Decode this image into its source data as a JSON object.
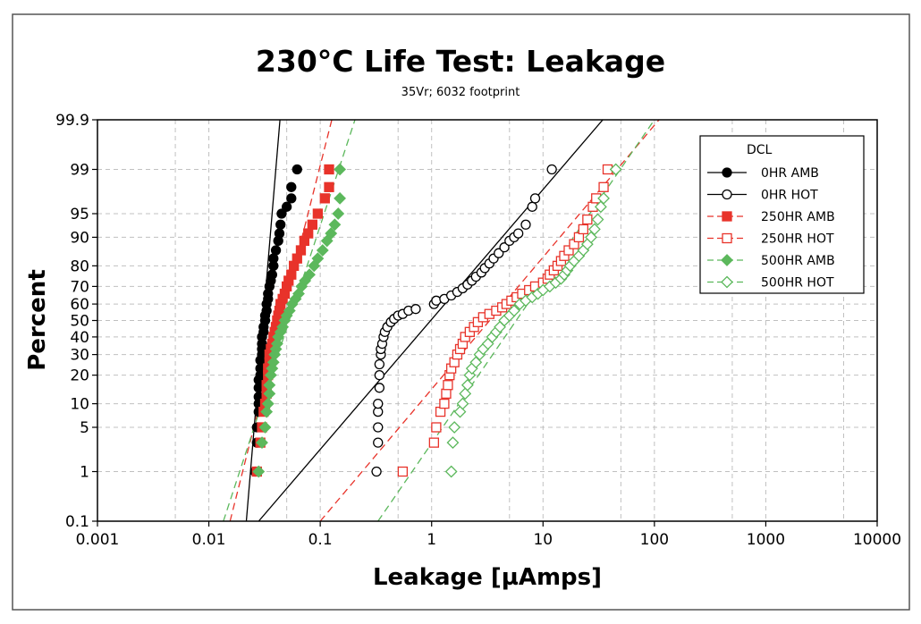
{
  "chart_data": {
    "type": "scatter",
    "title": "230°C Life Test: Leakage",
    "subtitle": "35Vr; 6032 footprint",
    "xlabel": "Leakage [µAmps]",
    "ylabel": "Percent",
    "x_scale": "log",
    "y_scale": "probability",
    "xlim": [
      0.001,
      10000
    ],
    "ylim": [
      0.1,
      99.9
    ],
    "x_ticks": [
      0.001,
      0.01,
      0.1,
      1,
      10,
      100,
      1000,
      10000
    ],
    "x_tick_labels": [
      "0.001",
      "0.01",
      "0.1",
      "1",
      "10",
      "100",
      "1000",
      "10000"
    ],
    "y_ticks": [
      0.1,
      1,
      5,
      10,
      20,
      30,
      40,
      50,
      60,
      70,
      80,
      90,
      95,
      99,
      99.9
    ],
    "y_tick_labels": [
      "0.1",
      "1",
      "5",
      "10",
      "20",
      "30",
      "40",
      "50",
      "60",
      "70",
      "80",
      "90",
      "95",
      "99",
      "99.9"
    ],
    "grid": true,
    "legend": {
      "title": "DCL",
      "position": "top-right"
    },
    "series": [
      {
        "name": "0HR AMB",
        "color": "#000000",
        "marker": "filled-circle",
        "line_style": "solid",
        "fit_line": [
          [
            0.0217,
            0.1
          ],
          [
            0.0435,
            99.9
          ]
        ],
        "points": [
          [
            0.026,
            1
          ],
          [
            0.027,
            3
          ],
          [
            0.027,
            5
          ],
          [
            0.028,
            8
          ],
          [
            0.028,
            10
          ],
          [
            0.028,
            12
          ],
          [
            0.028,
            15
          ],
          [
            0.028,
            18
          ],
          [
            0.029,
            20
          ],
          [
            0.029,
            23
          ],
          [
            0.029,
            27
          ],
          [
            0.03,
            30
          ],
          [
            0.03,
            33
          ],
          [
            0.03,
            36
          ],
          [
            0.03,
            40
          ],
          [
            0.031,
            43
          ],
          [
            0.031,
            46
          ],
          [
            0.032,
            50
          ],
          [
            0.032,
            53
          ],
          [
            0.033,
            56
          ],
          [
            0.033,
            60
          ],
          [
            0.034,
            63
          ],
          [
            0.034,
            66
          ],
          [
            0.035,
            70
          ],
          [
            0.036,
            73
          ],
          [
            0.037,
            76
          ],
          [
            0.038,
            80
          ],
          [
            0.038,
            83
          ],
          [
            0.04,
            86
          ],
          [
            0.042,
            89
          ],
          [
            0.043,
            91
          ],
          [
            0.044,
            93
          ],
          [
            0.045,
            95
          ],
          [
            0.05,
            96
          ],
          [
            0.055,
            97
          ],
          [
            0.055,
            98
          ],
          [
            0.062,
            99
          ]
        ]
      },
      {
        "name": "0HR HOT",
        "color": "#000000",
        "marker": "open-circle",
        "line_style": "solid",
        "fit_line": [
          [
            0.028,
            0.1
          ],
          [
            34.4,
            99.9
          ]
        ],
        "points": [
          [
            0.32,
            1
          ],
          [
            0.33,
            3
          ],
          [
            0.33,
            5
          ],
          [
            0.33,
            8
          ],
          [
            0.33,
            10
          ],
          [
            0.34,
            15
          ],
          [
            0.34,
            20
          ],
          [
            0.34,
            25
          ],
          [
            0.35,
            30
          ],
          [
            0.35,
            33
          ],
          [
            0.36,
            36
          ],
          [
            0.37,
            40
          ],
          [
            0.38,
            43
          ],
          [
            0.4,
            46
          ],
          [
            0.43,
            49
          ],
          [
            0.46,
            51
          ],
          [
            0.5,
            53
          ],
          [
            0.55,
            54
          ],
          [
            0.62,
            56
          ],
          [
            0.72,
            57
          ],
          [
            1.05,
            60
          ],
          [
            1.1,
            62
          ],
          [
            1.3,
            63
          ],
          [
            1.5,
            65
          ],
          [
            1.7,
            67
          ],
          [
            1.9,
            69
          ],
          [
            2.1,
            71
          ],
          [
            2.3,
            73
          ],
          [
            2.5,
            75
          ],
          [
            2.8,
            77
          ],
          [
            3.0,
            79
          ],
          [
            3.3,
            81
          ],
          [
            3.6,
            83
          ],
          [
            4.0,
            85
          ],
          [
            4.5,
            87
          ],
          [
            5.0,
            89
          ],
          [
            5.5,
            90
          ],
          [
            6.0,
            91
          ],
          [
            7.0,
            93
          ],
          [
            8.0,
            96
          ],
          [
            8.5,
            97
          ],
          [
            12.0,
            99
          ]
        ]
      },
      {
        "name": "250HR AMB",
        "color": "#e8332a",
        "marker": "filled-square",
        "line_style": "dashed",
        "fit_line": [
          [
            0.0155,
            0.1
          ],
          [
            0.127,
            99.9
          ]
        ],
        "points": [
          [
            0.027,
            1
          ],
          [
            0.029,
            3
          ],
          [
            0.03,
            5
          ],
          [
            0.031,
            8
          ],
          [
            0.032,
            10
          ],
          [
            0.033,
            13
          ],
          [
            0.033,
            16
          ],
          [
            0.034,
            20
          ],
          [
            0.034,
            23
          ],
          [
            0.035,
            26
          ],
          [
            0.035,
            30
          ],
          [
            0.036,
            33
          ],
          [
            0.037,
            36
          ],
          [
            0.038,
            40
          ],
          [
            0.039,
            43
          ],
          [
            0.04,
            46
          ],
          [
            0.041,
            50
          ],
          [
            0.042,
            53
          ],
          [
            0.043,
            56
          ],
          [
            0.044,
            60
          ],
          [
            0.046,
            63
          ],
          [
            0.048,
            66
          ],
          [
            0.05,
            70
          ],
          [
            0.052,
            73
          ],
          [
            0.055,
            76
          ],
          [
            0.058,
            80
          ],
          [
            0.062,
            83
          ],
          [
            0.067,
            86
          ],
          [
            0.072,
            89
          ],
          [
            0.078,
            91
          ],
          [
            0.085,
            93
          ],
          [
            0.095,
            95
          ],
          [
            0.11,
            97
          ],
          [
            0.12,
            98
          ],
          [
            0.12,
            99
          ]
        ]
      },
      {
        "name": "250HR HOT",
        "color": "#e8332a",
        "marker": "open-square",
        "line_style": "dashed",
        "fit_line": [
          [
            0.1,
            0.1
          ],
          [
            110,
            99.9
          ]
        ],
        "points": [
          [
            0.55,
            1
          ],
          [
            1.05,
            3
          ],
          [
            1.1,
            5
          ],
          [
            1.2,
            8
          ],
          [
            1.3,
            10
          ],
          [
            1.35,
            13
          ],
          [
            1.4,
            16
          ],
          [
            1.45,
            20
          ],
          [
            1.5,
            23
          ],
          [
            1.6,
            26
          ],
          [
            1.7,
            30
          ],
          [
            1.8,
            33
          ],
          [
            1.9,
            36
          ],
          [
            2.0,
            40
          ],
          [
            2.2,
            43
          ],
          [
            2.4,
            46
          ],
          [
            2.6,
            49
          ],
          [
            2.9,
            52
          ],
          [
            3.3,
            54
          ],
          [
            3.8,
            56
          ],
          [
            4.3,
            58
          ],
          [
            4.7,
            60
          ],
          [
            5.2,
            62
          ],
          [
            5.8,
            64
          ],
          [
            6.5,
            66
          ],
          [
            7.5,
            68
          ],
          [
            8.5,
            70
          ],
          [
            10.0,
            72
          ],
          [
            11.0,
            74
          ],
          [
            11.5,
            76
          ],
          [
            12.5,
            78
          ],
          [
            13.5,
            80
          ],
          [
            14.5,
            82
          ],
          [
            15.5,
            84
          ],
          [
            17.0,
            86
          ],
          [
            19.0,
            88
          ],
          [
            21.0,
            90
          ],
          [
            23.0,
            92
          ],
          [
            25.0,
            94
          ],
          [
            28.0,
            96
          ],
          [
            30.0,
            97
          ],
          [
            35.0,
            98
          ],
          [
            38.0,
            99
          ]
        ]
      },
      {
        "name": "500HR AMB",
        "color": "#5cb85c",
        "marker": "filled-diamond",
        "line_style": "dashed",
        "fit_line": [
          [
            0.0135,
            0.1
          ],
          [
            0.205,
            99.9
          ]
        ],
        "points": [
          [
            0.028,
            1
          ],
          [
            0.03,
            3
          ],
          [
            0.032,
            5
          ],
          [
            0.033,
            8
          ],
          [
            0.034,
            10
          ],
          [
            0.035,
            13
          ],
          [
            0.035,
            16
          ],
          [
            0.036,
            20
          ],
          [
            0.037,
            23
          ],
          [
            0.038,
            26
          ],
          [
            0.039,
            30
          ],
          [
            0.04,
            33
          ],
          [
            0.041,
            36
          ],
          [
            0.042,
            40
          ],
          [
            0.044,
            43
          ],
          [
            0.046,
            46
          ],
          [
            0.048,
            50
          ],
          [
            0.05,
            53
          ],
          [
            0.053,
            56
          ],
          [
            0.056,
            60
          ],
          [
            0.06,
            63
          ],
          [
            0.064,
            66
          ],
          [
            0.068,
            70
          ],
          [
            0.073,
            73
          ],
          [
            0.08,
            76
          ],
          [
            0.088,
            80
          ],
          [
            0.095,
            83
          ],
          [
            0.105,
            86
          ],
          [
            0.115,
            89
          ],
          [
            0.125,
            91
          ],
          [
            0.135,
            93
          ],
          [
            0.145,
            95
          ],
          [
            0.15,
            97
          ],
          [
            0.15,
            99
          ]
        ]
      },
      {
        "name": "500HR HOT",
        "color": "#5cb85c",
        "marker": "open-diamond",
        "line_style": "dashed",
        "fit_line": [
          [
            0.33,
            0.1
          ],
          [
            100,
            99.9
          ]
        ],
        "points": [
          [
            1.5,
            1
          ],
          [
            1.55,
            3
          ],
          [
            1.6,
            5
          ],
          [
            1.8,
            8
          ],
          [
            1.9,
            10
          ],
          [
            2.0,
            13
          ],
          [
            2.1,
            16
          ],
          [
            2.2,
            20
          ],
          [
            2.3,
            23
          ],
          [
            2.5,
            26
          ],
          [
            2.7,
            30
          ],
          [
            2.9,
            33
          ],
          [
            3.2,
            36
          ],
          [
            3.5,
            40
          ],
          [
            3.8,
            43
          ],
          [
            4.1,
            46
          ],
          [
            4.5,
            50
          ],
          [
            5.0,
            53
          ],
          [
            5.5,
            56
          ],
          [
            6.2,
            60
          ],
          [
            7.0,
            62
          ],
          [
            8.0,
            64
          ],
          [
            9.0,
            66
          ],
          [
            10.0,
            68
          ],
          [
            11.5,
            70
          ],
          [
            13.0,
            72
          ],
          [
            14.5,
            74
          ],
          [
            15.5,
            76
          ],
          [
            16.5,
            78
          ],
          [
            17.5,
            80
          ],
          [
            19.0,
            82
          ],
          [
            21.0,
            84
          ],
          [
            23.0,
            86
          ],
          [
            25.0,
            88
          ],
          [
            27.0,
            90
          ],
          [
            29.0,
            92
          ],
          [
            31.0,
            94
          ],
          [
            33.0,
            96
          ],
          [
            35.0,
            97
          ],
          [
            45.0,
            99
          ]
        ]
      }
    ]
  }
}
